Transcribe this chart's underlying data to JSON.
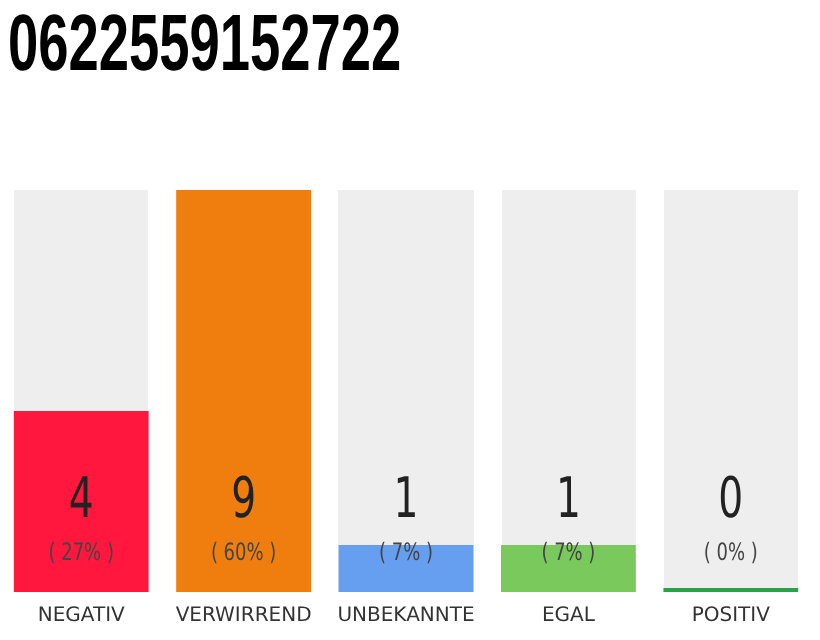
{
  "chart_data": {
    "type": "bar",
    "title": "0622559152722",
    "categories": [
      "NEGATIV",
      "VERWIRREND",
      "UNBEKANNTE",
      "EGAL",
      "POSITIV"
    ],
    "values": [
      27,
      60,
      7,
      7,
      0
    ],
    "colors": [
      "#ff173d",
      "#f07e0e",
      "#679ff0",
      "#7ac95c",
      "#2aa24a"
    ],
    "value_labels": [
      "( 27% )",
      "( 60% )",
      "( 7% )",
      "( 7% )",
      "( 0% )"
    ],
    "annotations": [
      "4",
      "9",
      "1",
      "1",
      "0"
    ],
    "grid": false,
    "legend": false
  }
}
